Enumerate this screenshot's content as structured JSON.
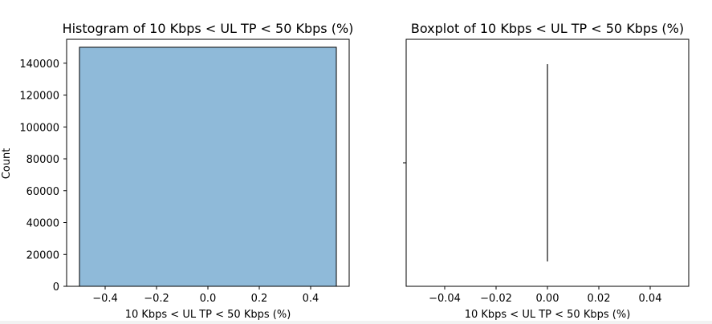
{
  "chart_data": [
    {
      "type": "bar",
      "title": "Histogram of 10 Kbps < UL TP < 50 Kbps (%)",
      "xlabel": "10 Kbps < UL TP < 50 Kbps (%)",
      "ylabel": "Count",
      "xlim": [
        -0.55,
        0.55
      ],
      "ylim": [
        0,
        155000
      ],
      "bins": [
        {
          "x0": -0.5,
          "x1": 0.5,
          "count": 150000
        }
      ],
      "xticks": [
        -0.4,
        -0.2,
        0.0,
        0.2,
        0.4
      ],
      "xtick_labels": [
        "−0.4",
        "−0.2",
        "0.0",
        "0.2",
        "0.4"
      ],
      "yticks": [
        0,
        20000,
        40000,
        60000,
        80000,
        100000,
        120000,
        140000
      ],
      "ytick_labels": [
        "0",
        "20000",
        "40000",
        "60000",
        "80000",
        "100000",
        "120000",
        "140000"
      ],
      "bar_color": "#8fbad9",
      "edge_color": "#000000",
      "grid": false
    },
    {
      "type": "box",
      "title": "Boxplot of 10 Kbps < UL TP < 50 Kbps (%)",
      "xlabel": "10 Kbps < UL TP < 50 Kbps (%)",
      "xlim": [
        -0.055,
        0.055
      ],
      "stats": {
        "min": 0.0,
        "q1": 0.0,
        "median": 0.0,
        "q3": 0.0,
        "max": 0.0
      },
      "xticks": [
        -0.04,
        -0.02,
        0.0,
        0.02,
        0.04
      ],
      "xtick_labels": [
        "−0.04",
        "−0.02",
        "0.00",
        "0.02",
        "0.04"
      ],
      "line_color": "#3d3d3d",
      "grid": false
    }
  ]
}
